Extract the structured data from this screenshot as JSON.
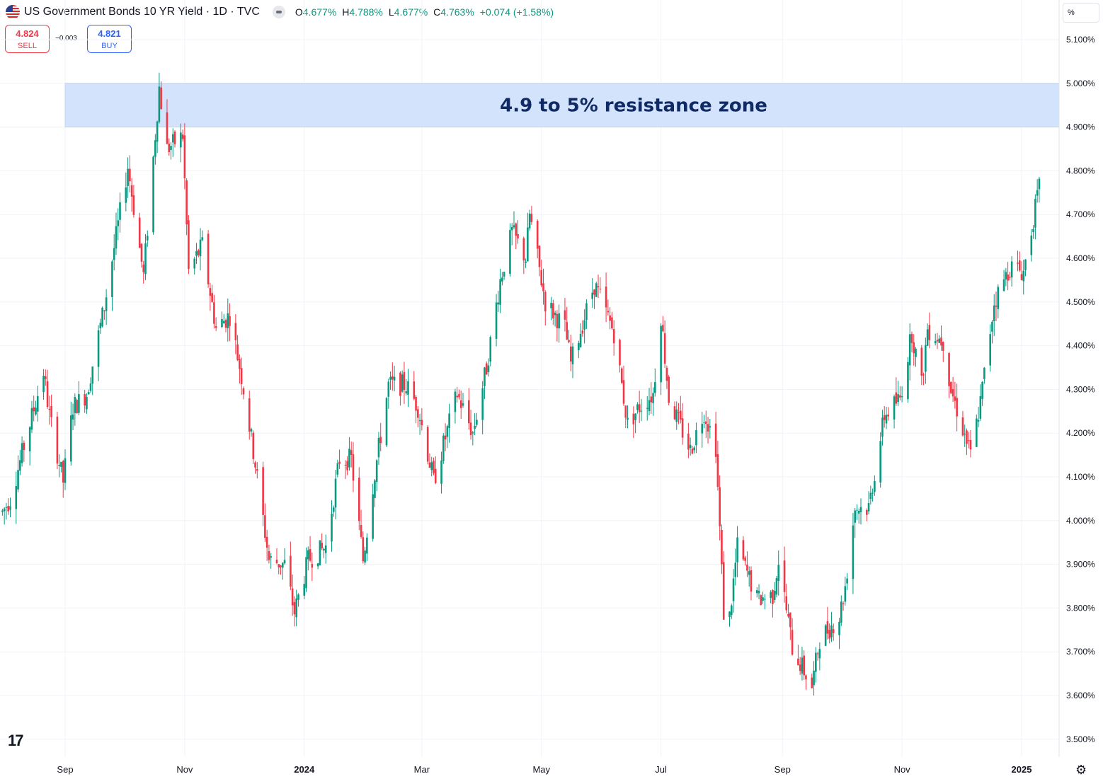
{
  "header": {
    "title": "US Government Bonds 10 YR Yield · 1D · TVC",
    "ohlc": [
      {
        "k": "O",
        "v": "4.677%"
      },
      {
        "k": "H",
        "v": "4.788%"
      },
      {
        "k": "L",
        "v": "4.677%"
      },
      {
        "k": "C",
        "v": "4.763%"
      },
      {
        "k": "",
        "v": "+0.074 (+1.58%)"
      }
    ]
  },
  "trade": {
    "sell_price": "4.824",
    "sell_label": "SELL",
    "buy_price": "4.821",
    "buy_label": "BUY",
    "spread": "−0.003"
  },
  "unit_label": "%",
  "logo_text": "17",
  "colors": {
    "up": "#089981",
    "down": "#f23645",
    "zone": "#d4e3fc",
    "zone_text": "#0f2a64",
    "grid": "#f0f3fa"
  },
  "chart_data": {
    "type": "candlestick",
    "ylim": [
      3.48,
      5.17
    ],
    "y_ticks": [
      "5.100%",
      "5.000%",
      "4.900%",
      "4.800%",
      "4.700%",
      "4.600%",
      "4.500%",
      "4.400%",
      "4.300%",
      "4.200%",
      "4.100%",
      "4.000%",
      "3.900%",
      "3.800%",
      "3.700%",
      "3.600%",
      "3.500%"
    ],
    "x_ticks": [
      {
        "label": "Sep",
        "date": "2023-09-01"
      },
      {
        "label": "Nov",
        "date": "2023-11-01"
      },
      {
        "label": "2024",
        "date": "2024-01-01"
      },
      {
        "label": "Mar",
        "date": "2024-03-01"
      },
      {
        "label": "May",
        "date": "2024-05-01"
      },
      {
        "label": "Jul",
        "date": "2024-07-01"
      },
      {
        "label": "Sep",
        "date": "2024-09-01"
      },
      {
        "label": "Nov",
        "date": "2024-11-01"
      },
      {
        "label": "2025",
        "date": "2025-01-01"
      }
    ],
    "annotation": {
      "text": "4.9 to 5% resistance zone",
      "from": 4.9,
      "to": 5.0
    },
    "close_path": [
      [
        "2023-07-31",
        4.02
      ],
      [
        "2023-08-04",
        4.05
      ],
      [
        "2023-08-11",
        4.17
      ],
      [
        "2023-08-21",
        4.34
      ],
      [
        "2023-08-24",
        4.24
      ],
      [
        "2023-08-31",
        4.09
      ],
      [
        "2023-09-05",
        4.26
      ],
      [
        "2023-09-12",
        4.29
      ],
      [
        "2023-09-21",
        4.49
      ],
      [
        "2023-10-03",
        4.81
      ],
      [
        "2023-10-11",
        4.56
      ],
      [
        "2023-10-19",
        4.99
      ],
      [
        "2023-10-23",
        4.85
      ],
      [
        "2023-10-31",
        4.88
      ],
      [
        "2023-11-03",
        4.57
      ],
      [
        "2023-11-10",
        4.63
      ],
      [
        "2023-11-17",
        4.44
      ],
      [
        "2023-11-24",
        4.47
      ],
      [
        "2023-11-30",
        4.33
      ],
      [
        "2023-12-07",
        4.13
      ],
      [
        "2023-12-14",
        3.91
      ],
      [
        "2023-12-22",
        3.9
      ],
      [
        "2023-12-27",
        3.79
      ],
      [
        "2024-01-03",
        3.91
      ],
      [
        "2024-01-12",
        3.94
      ],
      [
        "2024-01-19",
        4.14
      ],
      [
        "2024-01-25",
        4.14
      ],
      [
        "2024-01-31",
        3.91
      ],
      [
        "2024-02-05",
        4.08
      ],
      [
        "2024-02-13",
        4.31
      ],
      [
        "2024-02-22",
        4.31
      ],
      [
        "2024-02-28",
        4.26
      ],
      [
        "2024-03-07",
        4.09
      ],
      [
        "2024-03-19",
        4.29
      ],
      [
        "2024-03-27",
        4.2
      ],
      [
        "2024-04-03",
        4.35
      ],
      [
        "2024-04-10",
        4.55
      ],
      [
        "2024-04-16",
        4.66
      ],
      [
        "2024-04-23",
        4.6
      ],
      [
        "2024-04-25",
        4.7
      ],
      [
        "2024-05-03",
        4.5
      ],
      [
        "2024-05-13",
        4.44
      ],
      [
        "2024-05-16",
        4.36
      ],
      [
        "2024-05-28",
        4.54
      ],
      [
        "2024-05-31",
        4.51
      ],
      [
        "2024-06-07",
        4.43
      ],
      [
        "2024-06-14",
        4.22
      ],
      [
        "2024-06-20",
        4.26
      ],
      [
        "2024-06-27",
        4.29
      ],
      [
        "2024-07-01",
        4.47
      ],
      [
        "2024-07-05",
        4.28
      ],
      [
        "2024-07-16",
        4.16
      ],
      [
        "2024-07-23",
        4.25
      ],
      [
        "2024-07-29",
        4.17
      ],
      [
        "2024-08-02",
        3.79
      ],
      [
        "2024-08-05",
        3.78
      ],
      [
        "2024-08-09",
        3.94
      ],
      [
        "2024-08-19",
        3.82
      ],
      [
        "2024-08-27",
        3.83
      ],
      [
        "2024-08-30",
        3.91
      ],
      [
        "2024-09-06",
        3.71
      ],
      [
        "2024-09-16",
        3.62
      ],
      [
        "2024-09-20",
        3.73
      ],
      [
        "2024-09-30",
        3.78
      ],
      [
        "2024-10-03",
        3.85
      ],
      [
        "2024-10-08",
        4.03
      ],
      [
        "2024-10-15",
        4.03
      ],
      [
        "2024-10-23",
        4.24
      ],
      [
        "2024-10-31",
        4.28
      ],
      [
        "2024-11-06",
        4.43
      ],
      [
        "2024-11-11",
        4.31
      ],
      [
        "2024-11-14",
        4.44
      ],
      [
        "2024-11-22",
        4.41
      ],
      [
        "2024-11-26",
        4.3
      ],
      [
        "2024-12-06",
        4.15
      ],
      [
        "2024-12-11",
        4.27
      ],
      [
        "2024-12-18",
        4.5
      ],
      [
        "2024-12-26",
        4.58
      ],
      [
        "2025-01-02",
        4.57
      ],
      [
        "2025-01-07",
        4.69
      ],
      [
        "2025-01-10",
        4.76
      ]
    ]
  }
}
